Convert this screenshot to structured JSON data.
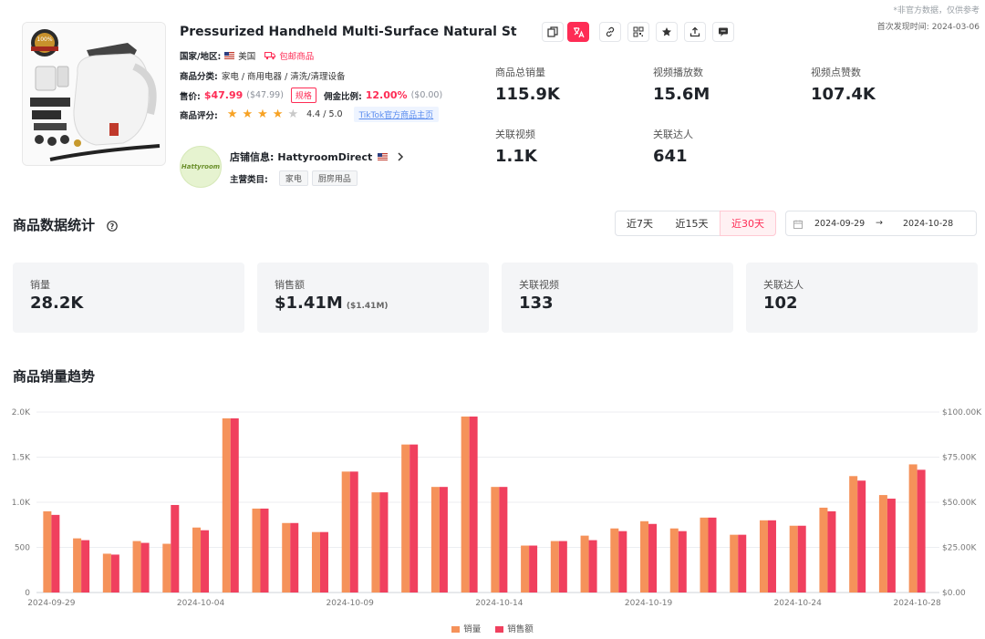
{
  "notes": {
    "disclaimer": "*非官方数据，仅供参考",
    "first_seen": "首次发现时间: 2024-03-06"
  },
  "product": {
    "title": "Pressurized Handheld Multi-Surface Natural Steam Cleane…",
    "country_label": "国家/地区:",
    "country": "美国",
    "free_shipping": "包邮商品",
    "category_label": "商品分类:",
    "category": "家电 / 商用电器 / 清洗/清理设备",
    "price_label": "售价:",
    "price": "$47.99",
    "price_alt": "($47.99)",
    "spec_tag": "规格",
    "commission_label": "佣金比例:",
    "commission": "12.00%",
    "commission_alt": "($0.00)",
    "rating_label": "商品评分:",
    "rating": "4.4 / 5.0",
    "rating_value": 4.4,
    "tiktok_link": "TikTok官方商品主页",
    "image_badge": "100%"
  },
  "shop": {
    "logo_text": "Hattyroom",
    "info_label": "店铺信息:",
    "name": "HattyroomDirect",
    "main_cat_label": "主营类目:",
    "categories": [
      "家电",
      "厨房用品"
    ]
  },
  "stats": [
    {
      "label": "商品总销量",
      "value": "115.9K"
    },
    {
      "label": "视频播放数",
      "value": "15.6M"
    },
    {
      "label": "视频点赞数",
      "value": "107.4K"
    },
    {
      "label": "关联视频",
      "value": "1.1K"
    },
    {
      "label": "关联达人",
      "value": "641"
    }
  ],
  "section": {
    "title": "商品数据统计",
    "ranges": [
      "近7天",
      "近15天",
      "近30天"
    ],
    "active_range": "近30天",
    "date_from": "2024-09-29",
    "date_sep": "→",
    "date_to": "2024-10-28"
  },
  "cards": [
    {
      "label": "销量",
      "value": "28.2K",
      "sub": ""
    },
    {
      "label": "销售额",
      "value": "$1.41M",
      "sub": "($1.41M)"
    },
    {
      "label": "关联视频",
      "value": "133",
      "sub": ""
    },
    {
      "label": "关联达人",
      "value": "102",
      "sub": ""
    }
  ],
  "trend_title": "商品销量趋势",
  "colors": {
    "accent": "#fe2c55",
    "sales": "#f5925a",
    "revenue": "#f0405e"
  },
  "chart_data": {
    "type": "bar",
    "dates": [
      "2024-09-29",
      "2024-09-30",
      "2024-10-01",
      "2024-10-02",
      "2024-10-03",
      "2024-10-04",
      "2024-10-05",
      "2024-10-06",
      "2024-10-07",
      "2024-10-08",
      "2024-10-09",
      "2024-10-10",
      "2024-10-11",
      "2024-10-12",
      "2024-10-13",
      "2024-10-14",
      "2024-10-15",
      "2024-10-16",
      "2024-10-17",
      "2024-10-18",
      "2024-10-19",
      "2024-10-20",
      "2024-10-21",
      "2024-10-22",
      "2024-10-23",
      "2024-10-24",
      "2024-10-25",
      "2024-10-26",
      "2024-10-27",
      "2024-10-28"
    ],
    "x_tick_labels": [
      "2024-09-29",
      "2024-10-04",
      "2024-10-09",
      "2024-10-14",
      "2024-10-19",
      "2024-10-24",
      "2024-10-28"
    ],
    "series": [
      {
        "name": "销量",
        "axis": "left",
        "values": [
          900,
          600,
          430,
          570,
          540,
          720,
          1930,
          930,
          770,
          670,
          1340,
          1110,
          1640,
          1170,
          1950,
          1170,
          520,
          570,
          630,
          710,
          790,
          710,
          830,
          640,
          800,
          740,
          940,
          1290,
          1080,
          1420
        ]
      },
      {
        "name": "销售额",
        "axis": "right",
        "values": [
          43000,
          29000,
          21000,
          27500,
          48500,
          34500,
          96500,
          46500,
          38500,
          33500,
          67000,
          55500,
          82000,
          58500,
          97500,
          58500,
          26000,
          28500,
          29000,
          34000,
          38000,
          34000,
          41500,
          32000,
          40000,
          37000,
          45000,
          62000,
          52000,
          68000
        ]
      }
    ],
    "left_ticks": [
      "0",
      "500",
      "1.0K",
      "1.5K",
      "2.0K"
    ],
    "right_ticks": [
      "$0.00",
      "$25.00K",
      "$50.00K",
      "$75.00K",
      "$100.00K"
    ],
    "ylim_left": [
      0,
      2000
    ],
    "ylim_right": [
      0,
      100000
    ],
    "grid": true,
    "legend_position": "bottom"
  }
}
